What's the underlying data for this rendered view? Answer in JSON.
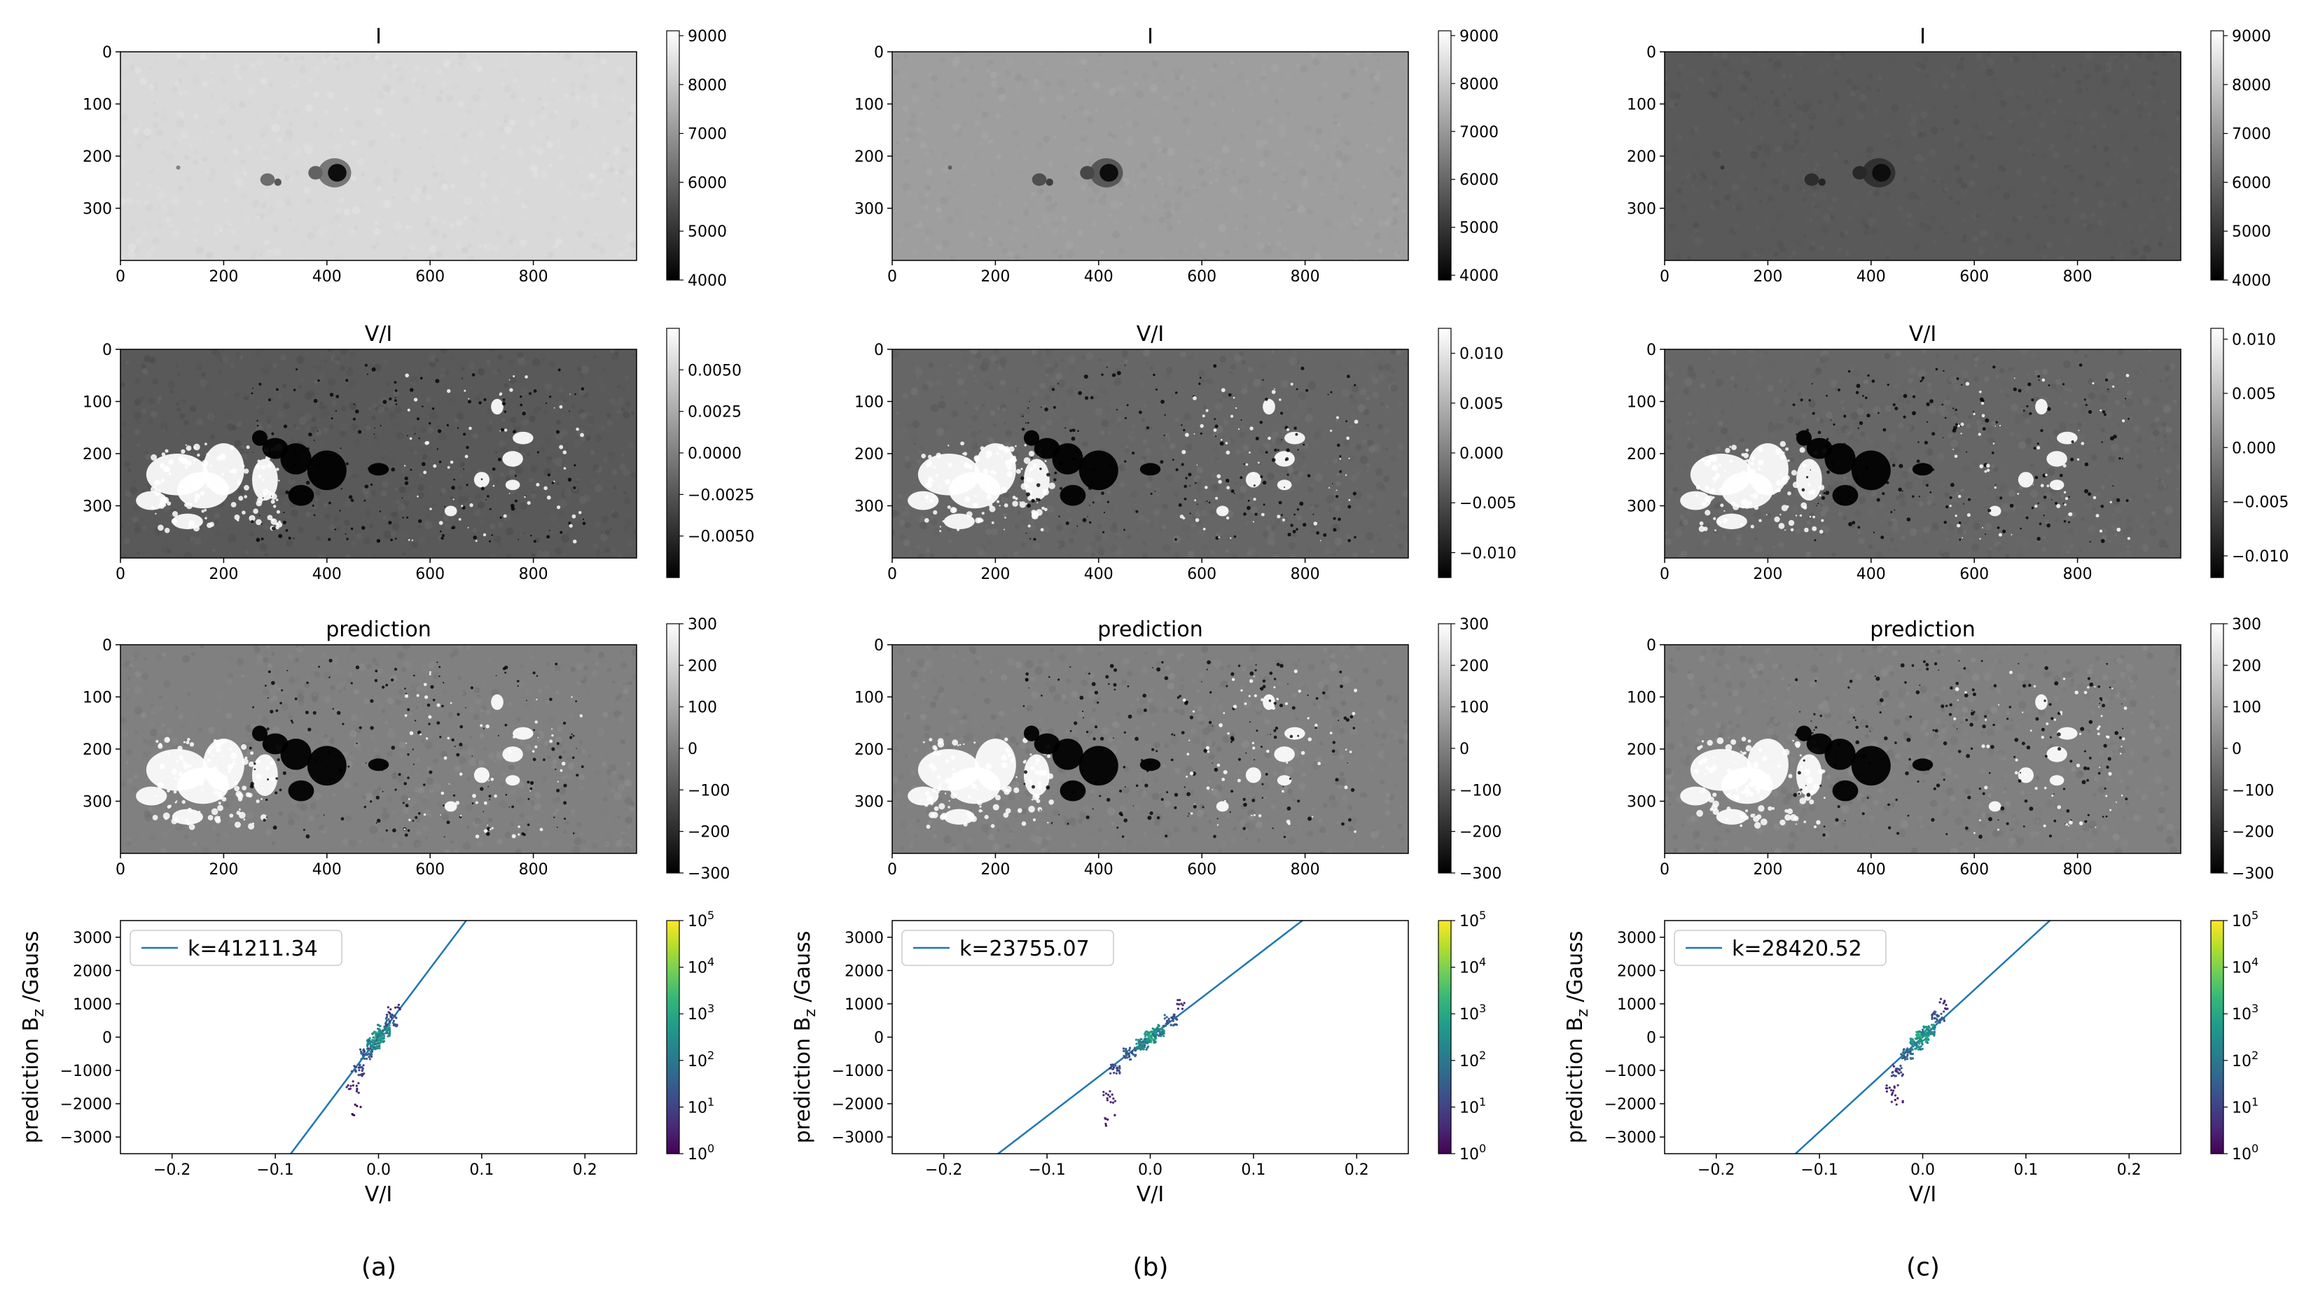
{
  "captions": [
    "(a)",
    "(b)",
    "(c)"
  ],
  "colors": {
    "fit_line": "#1f77b4",
    "frame": "#000000",
    "viridis": [
      "#440154",
      "#482878",
      "#3e4989",
      "#31688e",
      "#26828e",
      "#1f9e89",
      "#35b779",
      "#6ece58",
      "#b5de2b",
      "#fde725"
    ]
  },
  "chart_data": [
    {
      "type": "heatmap",
      "panel": "a",
      "title": "I",
      "colormap": "gray",
      "xticks": [
        "0",
        "200",
        "400",
        "600",
        "800"
      ],
      "yticks": [
        "0",
        "100",
        "200",
        "300"
      ],
      "xlim": [
        0,
        1000
      ],
      "ylim": [
        400,
        0
      ],
      "colorbar": {
        "range": [
          4000,
          9100
        ],
        "ticks": [
          "4000",
          "5000",
          "6000",
          "7000",
          "8000",
          "9000"
        ]
      },
      "background_level": 0.85
    },
    {
      "type": "heatmap",
      "panel": "b",
      "title": "I",
      "colormap": "gray",
      "xticks": [
        "0",
        "200",
        "400",
        "600",
        "800"
      ],
      "yticks": [
        "0",
        "100",
        "200",
        "300"
      ],
      "xlim": [
        0,
        1000
      ],
      "ylim": [
        400,
        0
      ],
      "colorbar": {
        "range": [
          3900,
          9100
        ],
        "ticks": [
          "4000",
          "5000",
          "6000",
          "7000",
          "8000",
          "9000"
        ]
      },
      "background_level": 0.62
    },
    {
      "type": "heatmap",
      "panel": "c",
      "title": "I",
      "colormap": "gray",
      "xticks": [
        "0",
        "200",
        "400",
        "600",
        "800"
      ],
      "yticks": [
        "0",
        "100",
        "200",
        "300"
      ],
      "xlim": [
        0,
        1000
      ],
      "ylim": [
        400,
        0
      ],
      "colorbar": {
        "range": [
          4000,
          9100
        ],
        "ticks": [
          "4000",
          "5000",
          "6000",
          "7000",
          "8000",
          "9000"
        ]
      },
      "background_level": 0.35
    },
    {
      "type": "heatmap",
      "panel": "a",
      "title": "V/I",
      "colormap": "gray",
      "xticks": [
        "0",
        "200",
        "400",
        "600",
        "800"
      ],
      "yticks": [
        "0",
        "100",
        "200",
        "300"
      ],
      "xlim": [
        0,
        1000
      ],
      "ylim": [
        400,
        0
      ],
      "colorbar": {
        "range": [
          -0.0075,
          0.0075
        ],
        "ticks": [
          "0.0050",
          "0.0025",
          "0.0000",
          "−0.0025",
          "−0.0050"
        ],
        "tick_values": [
          0.005,
          0.0025,
          0,
          -0.0025,
          -0.005
        ]
      },
      "background_level": 0.35
    },
    {
      "type": "heatmap",
      "panel": "b",
      "title": "V/I",
      "colormap": "gray",
      "xticks": [
        "0",
        "200",
        "400",
        "600",
        "800"
      ],
      "yticks": [
        "0",
        "100",
        "200",
        "300"
      ],
      "xlim": [
        0,
        1000
      ],
      "ylim": [
        400,
        0
      ],
      "colorbar": {
        "range": [
          -0.0125,
          0.0125
        ],
        "ticks": [
          "0.010",
          "0.005",
          "0.000",
          "−0.005",
          "−0.010"
        ],
        "tick_values": [
          0.01,
          0.005,
          0,
          -0.005,
          -0.01
        ]
      },
      "background_level": 0.4
    },
    {
      "type": "heatmap",
      "panel": "c",
      "title": "V/I",
      "colormap": "gray",
      "xticks": [
        "0",
        "200",
        "400",
        "600",
        "800"
      ],
      "yticks": [
        "0",
        "100",
        "200",
        "300"
      ],
      "xlim": [
        0,
        1000
      ],
      "ylim": [
        400,
        0
      ],
      "colorbar": {
        "range": [
          -0.012,
          0.011
        ],
        "ticks": [
          "0.010",
          "0.005",
          "0.000",
          "−0.005",
          "−0.010"
        ],
        "tick_values": [
          0.01,
          0.005,
          0,
          -0.005,
          -0.01
        ]
      },
      "background_level": 0.4
    },
    {
      "type": "heatmap",
      "panel": "a",
      "title": "prediction",
      "colormap": "gray",
      "xticks": [
        "0",
        "200",
        "400",
        "600",
        "800"
      ],
      "yticks": [
        "0",
        "100",
        "200",
        "300"
      ],
      "xlim": [
        0,
        1000
      ],
      "ylim": [
        400,
        0
      ],
      "colorbar": {
        "range": [
          -300,
          300
        ],
        "ticks": [
          "300",
          "200",
          "100",
          "0",
          "−100",
          "−200",
          "−300"
        ],
        "tick_values": [
          300,
          200,
          100,
          0,
          -100,
          -200,
          -300
        ]
      },
      "background_level": 0.5
    },
    {
      "type": "heatmap",
      "panel": "b",
      "title": "prediction",
      "colormap": "gray",
      "xticks": [
        "0",
        "200",
        "400",
        "600",
        "800"
      ],
      "yticks": [
        "0",
        "100",
        "200",
        "300"
      ],
      "xlim": [
        0,
        1000
      ],
      "ylim": [
        400,
        0
      ],
      "colorbar": {
        "range": [
          -300,
          300
        ],
        "ticks": [
          "300",
          "200",
          "100",
          "0",
          "−100",
          "−200",
          "−300"
        ],
        "tick_values": [
          300,
          200,
          100,
          0,
          -100,
          -200,
          -300
        ]
      },
      "background_level": 0.5
    },
    {
      "type": "heatmap",
      "panel": "c",
      "title": "prediction",
      "colormap": "gray",
      "xticks": [
        "0",
        "200",
        "400",
        "600",
        "800"
      ],
      "yticks": [
        "0",
        "100",
        "200",
        "300"
      ],
      "xlim": [
        0,
        1000
      ],
      "ylim": [
        400,
        0
      ],
      "colorbar": {
        "range": [
          -300,
          300
        ],
        "ticks": [
          "300",
          "200",
          "100",
          "0",
          "−100",
          "−200",
          "−300"
        ],
        "tick_values": [
          300,
          200,
          100,
          0,
          -100,
          -200,
          -300
        ]
      },
      "background_level": 0.5
    },
    {
      "type": "scatter",
      "panel": "a",
      "xlabel": "V/I",
      "ylabel": "prediction B",
      "ylabel_sub": "z",
      "ylabel_unit": " /Gauss",
      "xlim": [
        -0.25,
        0.25
      ],
      "ylim": [
        -3500,
        3500
      ],
      "xticks": [
        -0.2,
        -0.1,
        0.0,
        0.1,
        0.2
      ],
      "xtick_labels": [
        "−0.2",
        "−0.1",
        "0.0",
        "0.1",
        "0.2"
      ],
      "yticks": [
        -3000,
        -2000,
        -1000,
        0,
        1000,
        2000,
        3000
      ],
      "ytick_labels": [
        "−3000",
        "−2000",
        "−1000",
        "0",
        "1000",
        "2000",
        "3000"
      ],
      "legend": "k=41211.34",
      "legend_loc": "upper-left",
      "slope": 41211.34,
      "colorbar": {
        "scale": "log",
        "range_exp": [
          0,
          5
        ],
        "ticks_exp": [
          "0",
          "1",
          "2",
          "3",
          "4",
          "5"
        ]
      },
      "density": [
        {
          "x": 0.0,
          "y": 0,
          "count": 3000
        },
        {
          "x": 0.005,
          "y": 200,
          "count": 800
        },
        {
          "x": -0.005,
          "y": -200,
          "count": 800
        },
        {
          "x": -0.012,
          "y": -500,
          "count": 100
        },
        {
          "x": 0.012,
          "y": 500,
          "count": 60
        },
        {
          "x": -0.02,
          "y": -1000,
          "count": 20
        },
        {
          "x": -0.025,
          "y": -1500,
          "count": 5
        },
        {
          "x": -0.022,
          "y": -2200,
          "count": 2
        },
        {
          "x": 0.015,
          "y": 800,
          "count": 3
        }
      ]
    },
    {
      "type": "scatter",
      "panel": "b",
      "xlabel": "V/I",
      "ylabel": "prediction B",
      "ylabel_sub": "z",
      "ylabel_unit": " /Gauss",
      "xlim": [
        -0.25,
        0.25
      ],
      "ylim": [
        -3500,
        3500
      ],
      "xticks": [
        -0.2,
        -0.1,
        0.0,
        0.1,
        0.2
      ],
      "xtick_labels": [
        "−0.2",
        "−0.1",
        "0.0",
        "0.1",
        "0.2"
      ],
      "yticks": [
        -3000,
        -2000,
        -1000,
        0,
        1000,
        2000,
        3000
      ],
      "ytick_labels": [
        "−3000",
        "−2000",
        "−1000",
        "0",
        "1000",
        "2000",
        "3000"
      ],
      "legend": "k=23755.07",
      "legend_loc": "upper-left",
      "slope": 23755.07,
      "colorbar": {
        "scale": "log",
        "range_exp": [
          0,
          5
        ],
        "ticks_exp": [
          "0",
          "1",
          "2",
          "3",
          "4",
          "5"
        ]
      },
      "density": [
        {
          "x": 0.0,
          "y": 0,
          "count": 3000
        },
        {
          "x": 0.008,
          "y": 200,
          "count": 700
        },
        {
          "x": -0.008,
          "y": -200,
          "count": 700
        },
        {
          "x": -0.02,
          "y": -500,
          "count": 100
        },
        {
          "x": 0.02,
          "y": 500,
          "count": 50
        },
        {
          "x": -0.035,
          "y": -1000,
          "count": 20
        },
        {
          "x": -0.04,
          "y": -1800,
          "count": 5
        },
        {
          "x": -0.038,
          "y": -2500,
          "count": 2
        },
        {
          "x": 0.028,
          "y": 1000,
          "count": 3
        }
      ]
    },
    {
      "type": "scatter",
      "panel": "c",
      "xlabel": "V/I",
      "ylabel": "prediction B",
      "ylabel_sub": "z",
      "ylabel_unit": " /Gauss",
      "xlim": [
        -0.25,
        0.25
      ],
      "ylim": [
        -3500,
        3500
      ],
      "xticks": [
        -0.2,
        -0.1,
        0.0,
        0.1,
        0.2
      ],
      "xtick_labels": [
        "−0.2",
        "−0.1",
        "0.0",
        "0.1",
        "0.2"
      ],
      "yticks": [
        -3000,
        -2000,
        -1000,
        0,
        1000,
        2000,
        3000
      ],
      "ytick_labels": [
        "−3000",
        "−2000",
        "−1000",
        "0",
        "1000",
        "2000",
        "3000"
      ],
      "legend": "k=28420.52",
      "legend_loc": "upper-left",
      "slope": 28420.52,
      "colorbar": {
        "scale": "log",
        "range_exp": [
          0,
          5
        ],
        "ticks_exp": [
          "0",
          "1",
          "2",
          "3",
          "4",
          "5"
        ]
      },
      "density": [
        {
          "x": 0.0,
          "y": 0,
          "count": 3000
        },
        {
          "x": 0.006,
          "y": 200,
          "count": 800
        },
        {
          "x": -0.006,
          "y": -200,
          "count": 800
        },
        {
          "x": -0.015,
          "y": -500,
          "count": 100
        },
        {
          "x": 0.015,
          "y": 600,
          "count": 50
        },
        {
          "x": -0.025,
          "y": -1000,
          "count": 20
        },
        {
          "x": -0.03,
          "y": -1600,
          "count": 5
        },
        {
          "x": -0.025,
          "y": -2000,
          "count": 2
        },
        {
          "x": 0.02,
          "y": 1000,
          "count": 3
        }
      ]
    }
  ]
}
